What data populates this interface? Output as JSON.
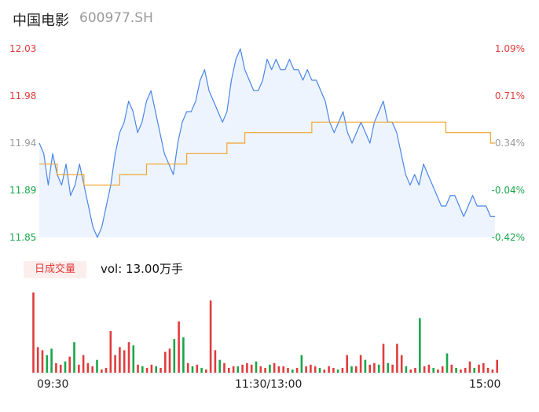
{
  "header": {
    "name": "中国电影",
    "code": "600977.SH"
  },
  "colors": {
    "price": "#4a86e8",
    "avg": "#f0a530",
    "up": "#e03c3c",
    "down": "#19a64a",
    "neutral": "#999999"
  },
  "volume": {
    "badge": "日成交量",
    "label": "vol: 13.00万手"
  },
  "chart_data": {
    "type": "line",
    "title": "",
    "x_ticks": [
      "09:30",
      "11:30/13:00",
      "15:00"
    ],
    "ylim": [
      11.85,
      12.03
    ],
    "y_ticks_left": [
      "12.03",
      "11.98",
      "11.94",
      "11.89",
      "11.85"
    ],
    "y_ticks_right": [
      "1.09%",
      "0.71%",
      "0.34%",
      "-0.04%",
      "-0.42%"
    ],
    "series": [
      {
        "values": [
          11.94,
          11.93,
          11.9,
          11.93,
          11.91,
          11.9,
          11.92,
          11.89,
          11.9,
          11.92,
          11.9,
          11.88,
          11.86,
          11.85,
          11.86,
          11.88,
          11.9,
          11.93,
          11.95,
          11.96,
          11.98,
          11.97,
          11.95,
          11.96,
          11.98,
          11.99,
          11.97,
          11.95,
          11.93,
          11.92,
          11.91,
          11.94,
          11.96,
          11.97,
          11.97,
          11.98,
          12.0,
          12.01,
          11.99,
          11.98,
          11.97,
          11.96,
          11.97,
          12.0,
          12.02,
          12.03,
          12.01,
          12.0,
          11.99,
          11.99,
          12.0,
          12.02,
          12.01,
          12.02,
          12.01,
          12.01,
          12.02,
          12.01,
          12.01,
          12.0,
          12.01,
          12.0,
          12.0,
          11.99,
          11.98,
          11.96,
          11.95,
          11.96,
          11.97,
          11.95,
          11.94,
          11.95,
          11.96,
          11.95,
          11.94,
          11.96,
          11.97,
          11.98,
          11.96,
          11.96,
          11.95,
          11.93,
          11.91,
          11.9,
          11.91,
          11.9,
          11.92,
          11.91,
          11.9,
          11.89,
          11.88,
          11.88,
          11.89,
          11.89,
          11.88,
          11.87,
          11.88,
          11.89,
          11.88,
          11.88,
          11.88,
          11.87,
          11.87
        ]
      },
      {
        "values": [
          11.92,
          11.92,
          11.92,
          11.92,
          11.91,
          11.91,
          11.91,
          11.91,
          11.91,
          11.91,
          11.9,
          11.9,
          11.9,
          11.9,
          11.9,
          11.9,
          11.9,
          11.9,
          11.91,
          11.91,
          11.91,
          11.91,
          11.91,
          11.91,
          11.92,
          11.92,
          11.92,
          11.92,
          11.92,
          11.92,
          11.92,
          11.92,
          11.92,
          11.93,
          11.93,
          11.93,
          11.93,
          11.93,
          11.93,
          11.93,
          11.93,
          11.93,
          11.94,
          11.94,
          11.94,
          11.94,
          11.95,
          11.95,
          11.95,
          11.95,
          11.95,
          11.95,
          11.95,
          11.95,
          11.95,
          11.95,
          11.95,
          11.95,
          11.95,
          11.95,
          11.95,
          11.96,
          11.96,
          11.96,
          11.96,
          11.96,
          11.96,
          11.96,
          11.96,
          11.96,
          11.96,
          11.96,
          11.96,
          11.96,
          11.96,
          11.96,
          11.96,
          11.96,
          11.96,
          11.96,
          11.96,
          11.96,
          11.96,
          11.96,
          11.96,
          11.96,
          11.96,
          11.96,
          11.96,
          11.96,
          11.96,
          11.95,
          11.95,
          11.95,
          11.95,
          11.95,
          11.95,
          11.95,
          11.95,
          11.95,
          11.95,
          11.94,
          11.94
        ]
      }
    ],
    "volume_bars": [
      {
        "v": 100,
        "d": "up"
      },
      {
        "v": 32,
        "d": "up"
      },
      {
        "v": 28,
        "d": "up"
      },
      {
        "v": 22,
        "d": "down"
      },
      {
        "v": 30,
        "d": "down"
      },
      {
        "v": 12,
        "d": "up"
      },
      {
        "v": 10,
        "d": "up"
      },
      {
        "v": 14,
        "d": "down"
      },
      {
        "v": 20,
        "d": "up"
      },
      {
        "v": 38,
        "d": "down"
      },
      {
        "v": 10,
        "d": "up"
      },
      {
        "v": 22,
        "d": "up"
      },
      {
        "v": 12,
        "d": "up"
      },
      {
        "v": 8,
        "d": "up"
      },
      {
        "v": 16,
        "d": "down"
      },
      {
        "v": 4,
        "d": "up"
      },
      {
        "v": 6,
        "d": "up"
      },
      {
        "v": 52,
        "d": "up"
      },
      {
        "v": 22,
        "d": "up"
      },
      {
        "v": 32,
        "d": "up"
      },
      {
        "v": 28,
        "d": "up"
      },
      {
        "v": 38,
        "d": "up"
      },
      {
        "v": 34,
        "d": "down"
      },
      {
        "v": 10,
        "d": "up"
      },
      {
        "v": 8,
        "d": "down"
      },
      {
        "v": 6,
        "d": "up"
      },
      {
        "v": 10,
        "d": "up"
      },
      {
        "v": 8,
        "d": "down"
      },
      {
        "v": 6,
        "d": "up"
      },
      {
        "v": 26,
        "d": "up"
      },
      {
        "v": 30,
        "d": "up"
      },
      {
        "v": 42,
        "d": "down"
      },
      {
        "v": 64,
        "d": "up"
      },
      {
        "v": 44,
        "d": "down"
      },
      {
        "v": 12,
        "d": "up"
      },
      {
        "v": 8,
        "d": "down"
      },
      {
        "v": 10,
        "d": "up"
      },
      {
        "v": 6,
        "d": "down"
      },
      {
        "v": 4,
        "d": "up"
      },
      {
        "v": 90,
        "d": "up"
      },
      {
        "v": 28,
        "d": "up"
      },
      {
        "v": 16,
        "d": "down"
      },
      {
        "v": 12,
        "d": "up"
      },
      {
        "v": 6,
        "d": "up"
      },
      {
        "v": 8,
        "d": "up"
      },
      {
        "v": 8,
        "d": "down"
      },
      {
        "v": 10,
        "d": "up"
      },
      {
        "v": 12,
        "d": "up"
      },
      {
        "v": 10,
        "d": "up"
      },
      {
        "v": 14,
        "d": "down"
      },
      {
        "v": 8,
        "d": "up"
      },
      {
        "v": 6,
        "d": "up"
      },
      {
        "v": 10,
        "d": "down"
      },
      {
        "v": 12,
        "d": "up"
      },
      {
        "v": 8,
        "d": "up"
      },
      {
        "v": 8,
        "d": "up"
      },
      {
        "v": 6,
        "d": "up"
      },
      {
        "v": 4,
        "d": "down"
      },
      {
        "v": 6,
        "d": "up"
      },
      {
        "v": 22,
        "d": "down"
      },
      {
        "v": 8,
        "d": "up"
      },
      {
        "v": 10,
        "d": "up"
      },
      {
        "v": 8,
        "d": "up"
      },
      {
        "v": 6,
        "d": "down"
      },
      {
        "v": 4,
        "d": "up"
      },
      {
        "v": 8,
        "d": "up"
      },
      {
        "v": 6,
        "d": "up"
      },
      {
        "v": 4,
        "d": "down"
      },
      {
        "v": 6,
        "d": "up"
      },
      {
        "v": 22,
        "d": "up"
      },
      {
        "v": 8,
        "d": "down"
      },
      {
        "v": 8,
        "d": "up"
      },
      {
        "v": 22,
        "d": "up"
      },
      {
        "v": 16,
        "d": "down"
      },
      {
        "v": 10,
        "d": "up"
      },
      {
        "v": 12,
        "d": "up"
      },
      {
        "v": 10,
        "d": "down"
      },
      {
        "v": 36,
        "d": "up"
      },
      {
        "v": 12,
        "d": "down"
      },
      {
        "v": 10,
        "d": "up"
      },
      {
        "v": 36,
        "d": "up"
      },
      {
        "v": 22,
        "d": "up"
      },
      {
        "v": 8,
        "d": "down"
      },
      {
        "v": 4,
        "d": "up"
      },
      {
        "v": 6,
        "d": "up"
      },
      {
        "v": 68,
        "d": "down"
      },
      {
        "v": 8,
        "d": "up"
      },
      {
        "v": 10,
        "d": "up"
      },
      {
        "v": 6,
        "d": "down"
      },
      {
        "v": 4,
        "d": "up"
      },
      {
        "v": 8,
        "d": "up"
      },
      {
        "v": 24,
        "d": "down"
      },
      {
        "v": 10,
        "d": "up"
      },
      {
        "v": 6,
        "d": "down"
      },
      {
        "v": 4,
        "d": "up"
      },
      {
        "v": 6,
        "d": "up"
      },
      {
        "v": 14,
        "d": "up"
      },
      {
        "v": 6,
        "d": "down"
      },
      {
        "v": 10,
        "d": "up"
      },
      {
        "v": 12,
        "d": "up"
      },
      {
        "v": 6,
        "d": "up"
      },
      {
        "v": 4,
        "d": "up"
      },
      {
        "v": 16,
        "d": "up"
      }
    ]
  }
}
